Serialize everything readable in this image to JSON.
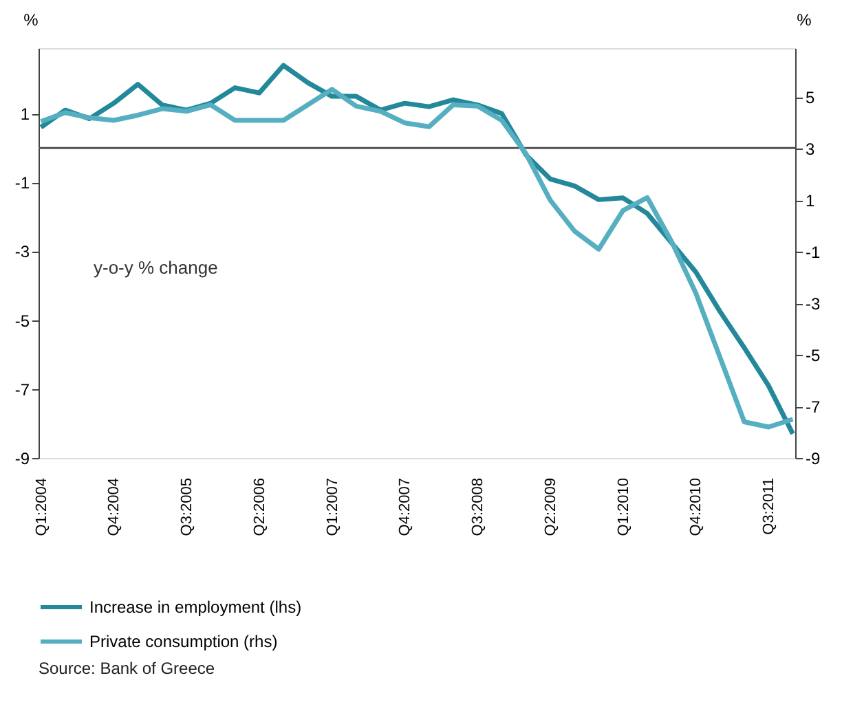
{
  "chart_data": {
    "type": "line",
    "categories": [
      "Q1:2004",
      null,
      null,
      "Q4:2004",
      null,
      null,
      "Q3:2005",
      null,
      null,
      "Q2:2006",
      null,
      null,
      "Q1:2007",
      null,
      null,
      "Q4:2007",
      null,
      null,
      "Q3:2008",
      null,
      null,
      "Q2:2009",
      null,
      null,
      "Q1:2010",
      null,
      null,
      "Q4:2010",
      null,
      null,
      "Q3:2011",
      null
    ],
    "series": [
      {
        "name": "Increase in employment (lhs)",
        "color": "#23889a",
        "values": [
          0.6,
          1.1,
          0.85,
          1.3,
          1.85,
          1.25,
          1.1,
          1.3,
          1.75,
          1.6,
          2.4,
          1.9,
          1.5,
          1.5,
          1.1,
          1.3,
          1.2,
          1.4,
          1.25,
          1.0,
          -0.2,
          -0.9,
          -1.1,
          -1.5,
          -1.45,
          -1.9,
          -2.75,
          -3.6,
          -4.75,
          -5.8,
          -6.9,
          -8.3
        ]
      },
      {
        "name": "Private consumption (rhs)",
        "color": "#55afc0",
        "axis": "y2",
        "values": [
          4.05,
          4.4,
          4.2,
          4.1,
          4.3,
          4.55,
          4.45,
          4.7,
          4.1,
          4.1,
          4.1,
          4.7,
          5.3,
          4.65,
          4.45,
          4.0,
          3.85,
          4.7,
          4.65,
          4.1,
          2.8,
          1.0,
          -0.2,
          -0.9,
          0.6,
          1.1,
          -0.6,
          -2.6,
          -5.1,
          -7.6,
          -7.8,
          -7.5
        ]
      }
    ],
    "ylabel": "%",
    "y2label": "%",
    "ylim": [
      -9,
      2.9
    ],
    "yticks": [
      -9,
      -7,
      -5,
      -3,
      -1,
      1
    ],
    "y2lim": [
      -9,
      6.9
    ],
    "y2ticks": [
      -9,
      -7,
      -5,
      -3,
      -1,
      1,
      3,
      5
    ],
    "ref_lines": [
      {
        "axis": "y",
        "value": 0,
        "color": "#555555"
      }
    ],
    "legend": "bottom left",
    "grid": false,
    "marker": "none",
    "line_style": "solid",
    "annotations": [
      "y-o-y % change",
      "Source: Bank of Greece"
    ]
  }
}
